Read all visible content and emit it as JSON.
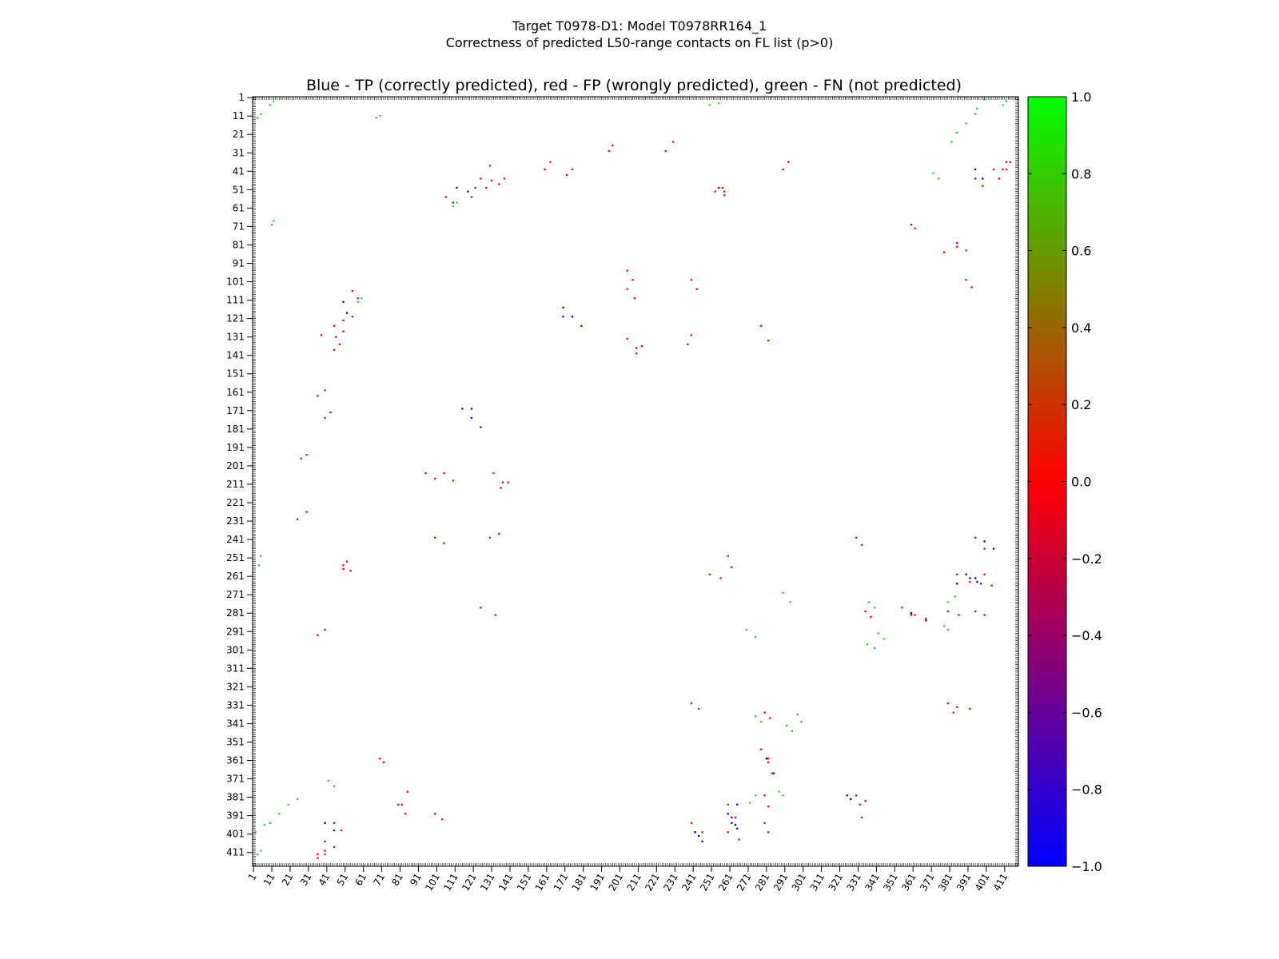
{
  "figure": {
    "title_line1": "Target T0978-D1: Model T0978RR164_1",
    "title_line2": "Correctness of predicted L50-range contacts on FL list (p>0)"
  },
  "chart_data": {
    "type": "heatmap",
    "title": "Blue - TP (correctly predicted), red - FP (wrongly predicted), green - FN (not predicted)",
    "xlabel": "",
    "ylabel": "",
    "residue_range": [
      1,
      418
    ],
    "x_ticks": [
      "1",
      "11",
      "21",
      "31",
      "41",
      "51",
      "61",
      "71",
      "81",
      "91",
      "101",
      "111",
      "121",
      "131",
      "141",
      "151",
      "161",
      "171",
      "181",
      "191",
      "201",
      "211",
      "221",
      "231",
      "241",
      "251",
      "261",
      "271",
      "281",
      "291",
      "301",
      "311",
      "321",
      "331",
      "341",
      "351",
      "361",
      "371",
      "381",
      "391",
      "401",
      "411"
    ],
    "y_ticks": [
      "1",
      "11",
      "21",
      "31",
      "41",
      "51",
      "61",
      "71",
      "81",
      "91",
      "101",
      "111",
      "121",
      "131",
      "141",
      "151",
      "161",
      "171",
      "181",
      "191",
      "201",
      "211",
      "221",
      "231",
      "241",
      "251",
      "261",
      "271",
      "281",
      "291",
      "301",
      "311",
      "321",
      "331",
      "341",
      "351",
      "361",
      "371",
      "381",
      "391",
      "401",
      "411"
    ],
    "colorbar": {
      "range": [
        -1.0,
        1.0
      ],
      "ticks": [
        "1.0",
        "0.8",
        "0.6",
        "0.4",
        "0.2",
        "0.0",
        "−0.2",
        "−0.4",
        "−0.6",
        "−0.8",
        "−1.0"
      ],
      "colors": {
        "low": "#0000ff",
        "mid": "#ff0000",
        "high": "#00ff00"
      }
    },
    "categories": {
      "TP": "#0000ff",
      "FP": "#ff0000",
      "FN": "#33cc33"
    },
    "contacts": {
      "FP": [
        [
          195,
          30
        ],
        [
          197,
          27
        ],
        [
          30,
          195
        ],
        [
          27,
          197
        ],
        [
          160,
          40
        ],
        [
          163,
          36
        ],
        [
          40,
          160
        ],
        [
          36,
          163
        ],
        [
          106,
          55
        ],
        [
          110,
          58
        ],
        [
          55,
          106
        ],
        [
          58,
          110
        ],
        [
          290,
          40
        ],
        [
          293,
          36
        ],
        [
          40,
          290
        ],
        [
          36,
          293
        ],
        [
          130,
          38
        ],
        [
          125,
          45
        ],
        [
          38,
          130
        ],
        [
          45,
          125
        ],
        [
          122,
          50
        ],
        [
          120,
          55
        ],
        [
          50,
          122
        ],
        [
          55,
          120
        ],
        [
          253,
          52
        ],
        [
          257,
          50
        ],
        [
          52,
          253
        ],
        [
          50,
          257
        ],
        [
          412,
          40
        ],
        [
          414,
          36
        ],
        [
          40,
          412
        ],
        [
          36,
          414
        ],
        [
          46,
          131
        ],
        [
          50,
          128
        ],
        [
          131,
          46
        ],
        [
          128,
          50
        ],
        [
          48,
          135
        ],
        [
          45,
          138
        ],
        [
          135,
          48
        ],
        [
          138,
          45
        ],
        [
          40,
          175
        ],
        [
          43,
          172
        ],
        [
          175,
          40
        ],
        [
          172,
          43
        ],
        [
          132,
          205
        ],
        [
          137,
          210
        ],
        [
          205,
          132
        ],
        [
          210,
          137
        ],
        [
          25,
          230
        ],
        [
          30,
          226
        ],
        [
          230,
          25
        ],
        [
          226,
          30
        ],
        [
          100,
          240
        ],
        [
          105,
          243
        ],
        [
          240,
          100
        ],
        [
          243,
          105
        ],
        [
          125,
          278
        ],
        [
          133,
          282
        ],
        [
          278,
          125
        ],
        [
          282,
          133
        ],
        [
          50,
          255
        ],
        [
          54,
          258
        ],
        [
          255,
          50
        ],
        [
          258,
          54
        ],
        [
          105,
          205
        ],
        [
          110,
          209
        ],
        [
          205,
          105
        ],
        [
          209,
          110
        ],
        [
          210,
          140
        ],
        [
          213,
          136
        ],
        [
          140,
          210
        ],
        [
          136,
          213
        ],
        [
          240,
          395
        ],
        [
          246,
          400
        ],
        [
          395,
          240
        ],
        [
          400,
          246
        ],
        [
          260,
          400
        ],
        [
          266,
          404
        ],
        [
          400,
          260
        ],
        [
          404,
          266
        ],
        [
          280,
          395
        ],
        [
          282,
          400
        ],
        [
          395,
          280
        ],
        [
          400,
          282
        ],
        [
          330,
          240
        ],
        [
          333,
          244
        ],
        [
          240,
          330
        ],
        [
          244,
          333
        ],
        [
          385,
          260
        ],
        [
          392,
          264
        ],
        [
          260,
          385
        ],
        [
          264,
          392
        ],
        [
          380,
          280
        ],
        [
          386,
          282
        ],
        [
          280,
          380
        ],
        [
          282,
          386
        ],
        [
          45,
          395
        ],
        [
          49,
          399
        ],
        [
          395,
          45
        ],
        [
          399,
          49
        ],
        [
          40,
          410
        ],
        [
          36,
          412
        ],
        [
          410,
          40
        ],
        [
          412,
          36
        ],
        [
          362,
          282
        ],
        [
          368,
          284
        ],
        [
          282,
          362
        ],
        [
          284,
          368
        ],
        [
          240,
          130
        ],
        [
          238,
          135
        ],
        [
          130,
          240
        ],
        [
          135,
          238
        ],
        [
          95,
          205
        ],
        [
          100,
          208
        ],
        [
          205,
          95
        ],
        [
          208,
          100
        ],
        [
          390,
          100
        ],
        [
          393,
          104
        ],
        [
          100,
          390
        ],
        [
          104,
          393
        ],
        [
          385,
          80
        ],
        [
          390,
          84
        ],
        [
          80,
          385
        ],
        [
          84,
          390
        ],
        [
          405,
          40
        ],
        [
          408,
          45
        ],
        [
          40,
          405
        ],
        [
          45,
          408
        ],
        [
          260,
          250
        ],
        [
          262,
          256
        ],
        [
          250,
          260
        ],
        [
          256,
          262
        ],
        [
          335,
          280
        ],
        [
          338,
          283
        ],
        [
          280,
          335
        ],
        [
          283,
          338
        ],
        [
          85,
          378
        ],
        [
          82,
          385
        ],
        [
          378,
          85
        ],
        [
          385,
          82
        ],
        [
          70,
          360
        ],
        [
          72,
          362
        ],
        [
          360,
          70
        ],
        [
          362,
          72
        ],
        [
          255,
          50
        ],
        [
          258,
          52
        ],
        [
          380,
          330
        ],
        [
          383,
          335
        ],
        [
          330,
          380
        ],
        [
          335,
          383
        ],
        [
          385,
          332
        ],
        [
          392,
          333
        ],
        [
          332,
          385
        ],
        [
          333,
          392
        ],
        [
          355,
          278
        ],
        [
          360,
          282
        ],
        [
          278,
          355
        ],
        [
          282,
          360
        ]
      ],
      "TP": [
        [
          115,
          170
        ],
        [
          120,
          175
        ],
        [
          170,
          115
        ],
        [
          175,
          120
        ],
        [
          170,
          120
        ],
        [
          180,
          125
        ],
        [
          120,
          170
        ],
        [
          125,
          180
        ],
        [
          395,
          40
        ],
        [
          399,
          45
        ],
        [
          40,
          395
        ],
        [
          45,
          399
        ],
        [
          390,
          260
        ],
        [
          396,
          264
        ],
        [
          260,
          390
        ],
        [
          264,
          396
        ],
        [
          385,
          265
        ],
        [
          392,
          262
        ],
        [
          265,
          385
        ],
        [
          262,
          392
        ],
        [
          242,
          400
        ],
        [
          246,
          405
        ],
        [
          400,
          242
        ],
        [
          405,
          246
        ],
        [
          281,
          360
        ],
        [
          285,
          368
        ],
        [
          360,
          281
        ],
        [
          368,
          285
        ],
        [
          50,
          112
        ],
        [
          52,
          118
        ],
        [
          112,
          50
        ],
        [
          118,
          52
        ],
        [
          395,
          262
        ],
        [
          398,
          265
        ],
        [
          262,
          395
        ],
        [
          265,
          398
        ],
        [
          242,
          400
        ],
        [
          244,
          402
        ],
        [
          325,
          380
        ],
        [
          327,
          382
        ]
      ],
      "FN": [
        [
          68,
          12
        ],
        [
          70,
          11
        ],
        [
          12,
          68
        ],
        [
          11,
          70
        ],
        [
          10,
          5
        ],
        [
          12,
          3
        ],
        [
          5,
          10
        ],
        [
          3,
          12
        ],
        [
          250,
          5
        ],
        [
          255,
          4
        ],
        [
          5,
          250
        ],
        [
          4,
          255
        ],
        [
          412,
          3
        ],
        [
          410,
          5
        ],
        [
          3,
          412
        ],
        [
          5,
          410
        ],
        [
          20,
          385
        ],
        [
          25,
          382
        ],
        [
          385,
          20
        ],
        [
          382,
          25
        ],
        [
          45,
          375
        ],
        [
          42,
          372
        ],
        [
          375,
          45
        ],
        [
          372,
          42
        ],
        [
          380,
          290
        ],
        [
          378,
          288
        ],
        [
          290,
          380
        ],
        [
          288,
          378
        ],
        [
          345,
          295
        ],
        [
          342,
          292
        ],
        [
          295,
          345
        ],
        [
          292,
          342
        ],
        [
          380,
          275
        ],
        [
          384,
          272
        ],
        [
          275,
          380
        ],
        [
          272,
          384
        ],
        [
          340,
          278
        ],
        [
          337,
          275
        ],
        [
          278,
          340
        ],
        [
          275,
          337
        ],
        [
          390,
          15
        ],
        [
          395,
          10
        ],
        [
          15,
          390
        ],
        [
          10,
          395
        ],
        [
          300,
          340
        ],
        [
          298,
          336
        ],
        [
          340,
          300
        ],
        [
          336,
          298
        ],
        [
          270,
          290
        ],
        [
          275,
          294
        ],
        [
          290,
          270
        ],
        [
          294,
          275
        ],
        [
          396,
          7
        ],
        [
          400,
          2
        ],
        [
          7,
          396
        ],
        [
          2,
          400
        ],
        [
          60,
          110
        ],
        [
          58,
          112
        ],
        [
          110,
          60
        ],
        [
          112,
          58
        ]
      ]
    }
  }
}
